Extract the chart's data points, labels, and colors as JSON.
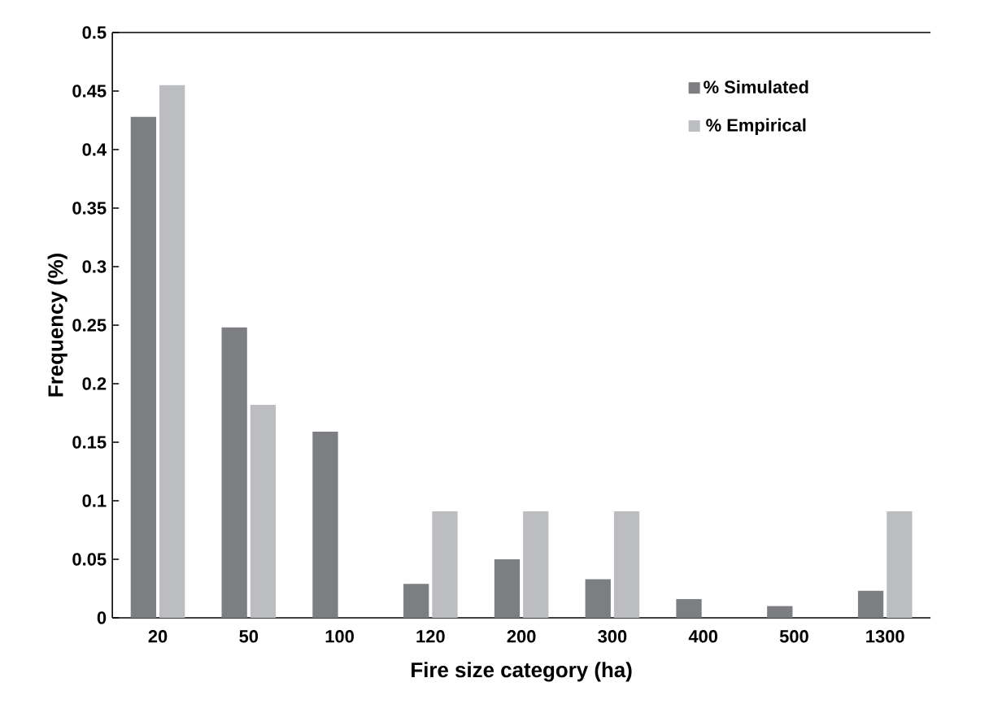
{
  "chart_data": {
    "type": "bar",
    "xlabel": "Fire size category (ha)",
    "ylabel": "Frequency (%)",
    "categories": [
      "20",
      "50",
      "100",
      "120",
      "200",
      "300",
      "400",
      "500",
      "1300"
    ],
    "series": [
      {
        "name": "% Simulated",
        "color": "#7d7e82",
        "values": [
          0.428,
          0.248,
          0.159,
          0.029,
          0.05,
          0.033,
          0.016,
          0.01,
          0.023
        ]
      },
      {
        "name": "% Empirical",
        "color": "#bcbdc1",
        "values": [
          0.455,
          0.182,
          0,
          0.091,
          0.091,
          0.091,
          0,
          0,
          0.091
        ]
      }
    ],
    "ylim": [
      0,
      0.5
    ],
    "yticks": [
      0,
      0.05,
      0.1,
      0.15,
      0.2,
      0.25,
      0.3,
      0.35,
      0.4,
      0.45,
      0.5
    ],
    "grid": false,
    "legend": "top right"
  }
}
